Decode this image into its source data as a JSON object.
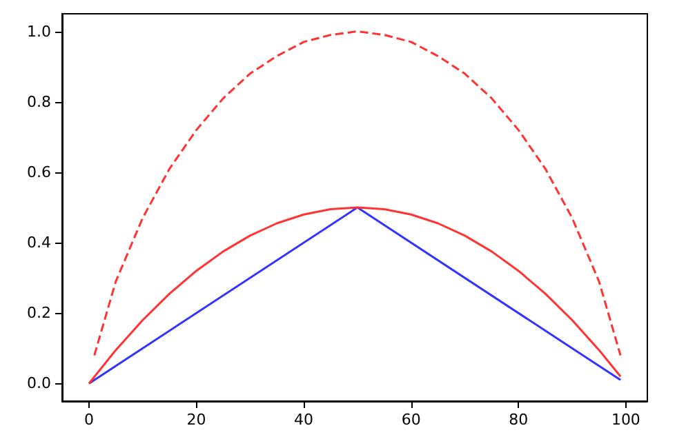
{
  "chart_data": {
    "type": "line",
    "xlim": [
      -5,
      104
    ],
    "xticks": [
      0,
      20,
      40,
      60,
      80,
      100
    ],
    "ylim": [
      -0.05,
      1.05
    ],
    "yticks": [
      {
        "value": 0,
        "label": "0.0"
      },
      {
        "value": 0.2,
        "label": "0.2"
      },
      {
        "value": 0.4,
        "label": "0.4"
      },
      {
        "value": 0.6,
        "label": "0.6"
      },
      {
        "value": 0.8,
        "label": "0.8"
      },
      {
        "value": 1,
        "label": "1.0"
      }
    ],
    "marker": "none",
    "series": [
      {
        "color": "#3333ff",
        "line_style": "solid",
        "x": [
          0,
          50,
          99
        ],
        "values": [
          0,
          0.5,
          0.01
        ]
      },
      {
        "color": "#ff3333",
        "line_style": "dashed",
        "x": [
          1,
          5,
          10,
          15,
          20,
          25,
          30,
          35,
          40,
          45,
          50,
          55,
          60,
          65,
          70,
          75,
          80,
          85,
          90,
          95,
          99
        ],
        "values": [
          0.08,
          0.29,
          0.47,
          0.61,
          0.72,
          0.81,
          0.88,
          0.93,
          0.97,
          0.99,
          1,
          0.99,
          0.97,
          0.93,
          0.88,
          0.81,
          0.72,
          0.61,
          0.47,
          0.29,
          0.08
        ]
      },
      {
        "color": "#ff3333",
        "line_style": "solid",
        "x": [
          0,
          5,
          10,
          15,
          20,
          25,
          30,
          35,
          40,
          45,
          50,
          55,
          60,
          65,
          70,
          75,
          80,
          85,
          90,
          95,
          99
        ],
        "values": [
          0,
          0.095,
          0.18,
          0.255,
          0.32,
          0.375,
          0.42,
          0.455,
          0.48,
          0.495,
          0.5,
          0.495,
          0.48,
          0.455,
          0.42,
          0.375,
          0.32,
          0.255,
          0.18,
          0.095,
          0.02
        ]
      }
    ]
  }
}
